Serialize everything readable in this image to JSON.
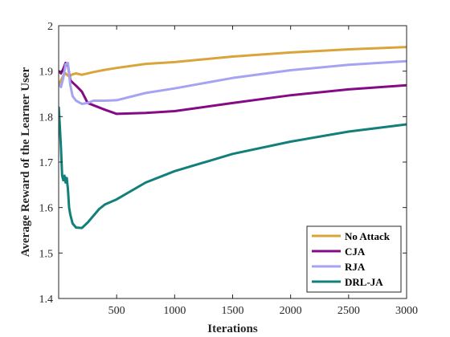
{
  "chart_data": {
    "type": "line",
    "title": "",
    "xlabel": "Iterations",
    "ylabel": "Average Reward of the Learner User",
    "xlim": [
      0,
      3000
    ],
    "ylim": [
      1.4,
      2.0
    ],
    "xticks": [
      500,
      1000,
      1500,
      2000,
      2500,
      3000
    ],
    "xtick_labels": [
      "500",
      "1000",
      "1500",
      "2000",
      "2500",
      "3000"
    ],
    "yticks": [
      1.4,
      1.5,
      1.6,
      1.7,
      1.8,
      1.9,
      2.0
    ],
    "ytick_labels": [
      "1.4",
      "1.5",
      "1.6",
      "1.7",
      "1.8",
      "1.9",
      "2"
    ],
    "grid": false,
    "legend_position": "bottom-right",
    "series": [
      {
        "name": "No Attack",
        "color": "#D9A53A",
        "x": [
          1,
          20,
          40,
          60,
          80,
          100,
          120,
          150,
          200,
          300,
          400,
          500,
          750,
          1000,
          1500,
          2000,
          2500,
          3000
        ],
        "y": [
          1.87,
          1.88,
          1.89,
          1.895,
          1.89,
          1.89,
          1.893,
          1.895,
          1.892,
          1.898,
          1.903,
          1.907,
          1.916,
          1.92,
          1.932,
          1.941,
          1.948,
          1.953
        ]
      },
      {
        "name": "CJA",
        "color": "#850A85",
        "x": [
          1,
          20,
          40,
          60,
          80,
          100,
          120,
          150,
          200,
          250,
          300,
          400,
          500,
          750,
          1000,
          1500,
          2000,
          2500,
          3000
        ],
        "y": [
          1.9,
          1.895,
          1.905,
          1.918,
          1.912,
          1.88,
          1.875,
          1.868,
          1.855,
          1.83,
          1.825,
          1.815,
          1.806,
          1.808,
          1.812,
          1.83,
          1.847,
          1.86,
          1.869
        ]
      },
      {
        "name": "RJA",
        "color": "#A4A4F2",
        "x": [
          1,
          20,
          40,
          60,
          80,
          100,
          120,
          150,
          200,
          250,
          300,
          400,
          500,
          750,
          1000,
          1500,
          2000,
          2500,
          3000
        ],
        "y": [
          1.87,
          1.865,
          1.885,
          1.915,
          1.918,
          1.87,
          1.845,
          1.835,
          1.828,
          1.83,
          1.835,
          1.835,
          1.836,
          1.852,
          1.862,
          1.885,
          1.902,
          1.914,
          1.922
        ]
      },
      {
        "name": "DRL-JA",
        "color": "#127F7A",
        "x": [
          1,
          10,
          20,
          30,
          40,
          50,
          60,
          70,
          80,
          90,
          100,
          120,
          150,
          200,
          250,
          300,
          350,
          400,
          500,
          750,
          1000,
          1500,
          2000,
          2500,
          3000
        ],
        "y": [
          1.82,
          1.78,
          1.73,
          1.67,
          1.66,
          1.67,
          1.655,
          1.665,
          1.64,
          1.6,
          1.585,
          1.565,
          1.556,
          1.555,
          1.567,
          1.582,
          1.597,
          1.607,
          1.618,
          1.655,
          1.68,
          1.718,
          1.745,
          1.767,
          1.783
        ]
      }
    ]
  }
}
